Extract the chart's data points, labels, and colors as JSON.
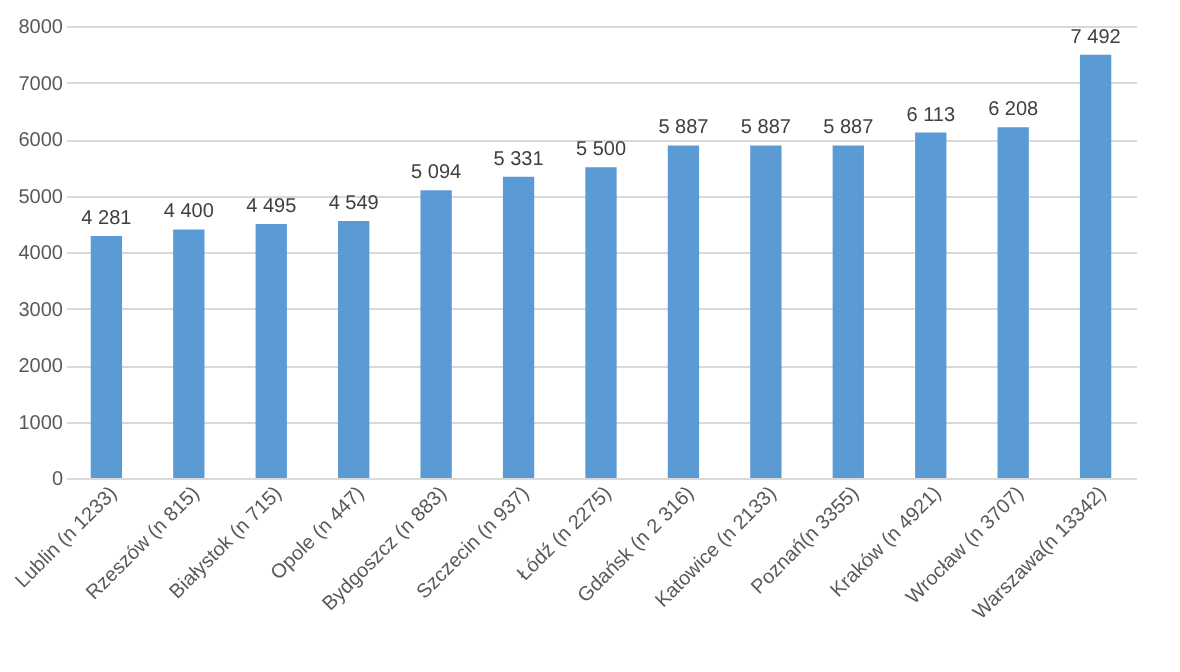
{
  "chart_data": {
    "type": "bar",
    "categories": [
      "Lublin (n 1233)",
      "Rzeszów (n 815)",
      "Białystok (n 715)",
      "Opole (n 447)",
      "Bydgoszcz (n 883)",
      "Szczecin (n 937)",
      "Łódź (n 2275)",
      "Gdańsk (n 2 316)",
      "Katowice (n 2133)",
      "Poznań(n 3355)",
      "Kraków (n 4921)",
      "Wrocław (n 3707)",
      "Warszawa(n 13342)"
    ],
    "values": [
      4281,
      4400,
      4495,
      4549,
      5094,
      5331,
      5500,
      5887,
      5887,
      5887,
      6113,
      6208,
      7492
    ],
    "value_labels": [
      "4 281",
      "4 400",
      "4 495",
      "4 549",
      "5 094",
      "5 331",
      "5 500",
      "5 887",
      "5 887",
      "5 887",
      "6 113",
      "6 208",
      "7 492"
    ],
    "color": "#5b9bd5",
    "ylim": [
      0,
      8000
    ],
    "yticks": [
      0,
      1000,
      2000,
      3000,
      4000,
      5000,
      6000,
      7000,
      8000
    ],
    "grid": "y"
  }
}
